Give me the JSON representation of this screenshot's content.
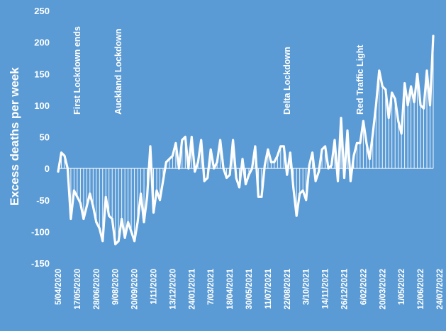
{
  "chart_data": {
    "type": "line",
    "title": "",
    "xlabel": "",
    "ylabel": "Excess deaths per week",
    "ylim": [
      -150,
      250
    ],
    "yticks": [
      -150,
      -100,
      -50,
      0,
      50,
      100,
      150,
      200,
      250
    ],
    "grid": false,
    "legend": "none",
    "x_tick_labels": [
      "5/04/2020",
      "17/05/2020",
      "28/06/2020",
      "9/08/2020",
      "20/09/2020",
      "1/11/2020",
      "13/12/2020",
      "24/01/2021",
      "7/03/2021",
      "18/04/2021",
      "30/05/2021",
      "11/07/2021",
      "22/08/2021",
      "3/10/2021",
      "14/11/2021",
      "26/12/2021",
      "6/02/2022",
      "20/03/2022",
      "1/05/2022",
      "12/06/2022",
      "24/07/2022"
    ],
    "annotations": [
      {
        "text": "First Lockdown ends",
        "date": "2020-05-17"
      },
      {
        "text": "Auckland Lockdown",
        "date": "2020-08-16"
      },
      {
        "text": "Delta Lockdown",
        "date": "2021-08-22"
      },
      {
        "text": "Red Traffic Light",
        "date": "2022-01-30"
      }
    ],
    "series": [
      {
        "start_date": "2020-04-05",
        "interval": "weekly",
        "values": [
          -5,
          25,
          20,
          0,
          -80,
          -35,
          -45,
          -55,
          -80,
          -60,
          -40,
          -60,
          -85,
          -95,
          -115,
          -45,
          -75,
          -80,
          -120,
          -115,
          -80,
          -110,
          -85,
          -100,
          -115,
          -85,
          -40,
          -85,
          -45,
          35,
          -70,
          -35,
          -50,
          -20,
          10,
          15,
          20,
          40,
          0,
          45,
          50,
          0,
          50,
          -5,
          10,
          45,
          -20,
          -15,
          30,
          0,
          10,
          45,
          0,
          -15,
          -10,
          45,
          -15,
          -30,
          15,
          -25,
          -10,
          0,
          35,
          -45,
          -45,
          5,
          30,
          10,
          10,
          20,
          35,
          35,
          -10,
          25,
          -30,
          -75,
          -40,
          -35,
          -50,
          5,
          25,
          -20,
          -5,
          30,
          35,
          0,
          5,
          45,
          -20,
          80,
          -15,
          60,
          -20,
          20,
          40,
          40,
          75,
          40,
          15,
          55,
          100,
          155,
          130,
          125,
          80,
          120,
          110,
          75,
          55,
          135,
          100,
          130,
          105,
          150,
          100,
          95,
          155,
          100,
          210
        ]
      }
    ]
  }
}
